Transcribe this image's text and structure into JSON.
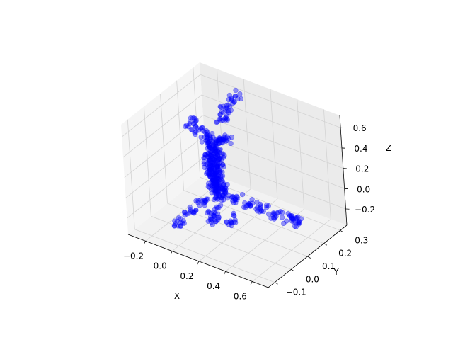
{
  "chart_data": {
    "type": "scatter",
    "projection": "3d",
    "title": "",
    "xlabel": "X",
    "ylabel": "Y",
    "zlabel": "Z",
    "x_ticks": [
      "−0.2",
      "0.0",
      "0.2",
      "0.4",
      "0.6"
    ],
    "y_ticks": [
      "−0.1",
      "0.0",
      "0.1",
      "0.2",
      "0.3"
    ],
    "z_ticks": [
      "−0.2",
      "0.0",
      "0.2",
      "0.4",
      "0.6"
    ],
    "xlim": [
      -0.33,
      0.72
    ],
    "ylim": [
      -0.14,
      0.34
    ],
    "zlim": [
      -0.36,
      0.72
    ],
    "grid": true,
    "marker_color": "#0000ff",
    "marker_alpha": 0.4,
    "point_cloud_description": "airplane point cloud",
    "series": [
      {
        "points": [
          [
            0.05,
            0.1,
            0.05
          ],
          [
            0.05,
            0.1,
            0.1
          ],
          [
            0.05,
            0.1,
            0.15
          ],
          [
            0.05,
            0.1,
            0.2
          ],
          [
            0.05,
            0.1,
            0.25
          ],
          [
            0.05,
            0.1,
            0.3
          ],
          [
            0.05,
            0.1,
            0.35
          ],
          [
            0.05,
            0.1,
            0.4
          ],
          [
            0.05,
            0.1,
            0.45
          ],
          [
            0.06,
            0.1,
            0.0
          ],
          [
            0.07,
            0.1,
            -0.05
          ],
          [
            0.08,
            0.1,
            -0.1
          ],
          [
            0.02,
            0.1,
            0.3
          ],
          [
            0.08,
            0.1,
            0.3
          ],
          [
            0.02,
            0.1,
            0.2
          ],
          [
            0.08,
            0.1,
            0.2
          ],
          [
            0.02,
            0.1,
            0.1
          ],
          [
            0.08,
            0.1,
            0.1
          ],
          [
            0.03,
            0.1,
            0.0
          ],
          [
            0.09,
            0.1,
            0.0
          ],
          [
            -0.1,
            0.1,
            0.55
          ],
          [
            -0.05,
            0.1,
            0.5
          ],
          [
            0.0,
            0.1,
            0.46
          ],
          [
            0.1,
            0.1,
            0.46
          ],
          [
            0.15,
            0.1,
            0.5
          ],
          [
            0.05,
            0.16,
            0.58
          ],
          [
            0.05,
            0.2,
            0.64
          ],
          [
            0.05,
            0.24,
            0.7
          ],
          [
            0.1,
            0.1,
            -0.05
          ],
          [
            0.2,
            0.1,
            -0.05
          ],
          [
            0.3,
            0.1,
            -0.05
          ],
          [
            0.4,
            0.1,
            -0.05
          ],
          [
            0.5,
            0.1,
            -0.05
          ],
          [
            0.6,
            0.1,
            -0.05
          ],
          [
            0.66,
            0.1,
            -0.05
          ],
          [
            0.05,
            0.02,
            -0.05
          ],
          [
            0.05,
            -0.06,
            -0.06
          ],
          [
            0.05,
            -0.12,
            -0.08
          ],
          [
            0.12,
            0.03,
            -0.14
          ],
          [
            0.26,
            0.03,
            -0.14
          ],
          [
            0.18,
            -0.02,
            -0.12
          ]
        ]
      }
    ]
  }
}
